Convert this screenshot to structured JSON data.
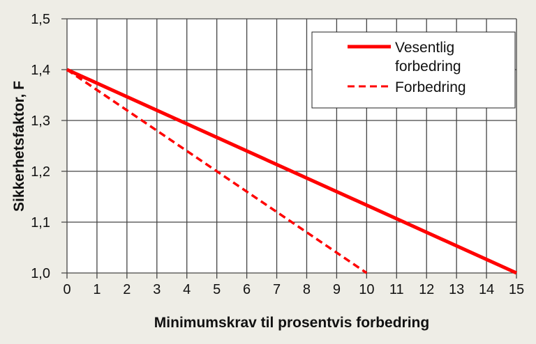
{
  "chart_data": {
    "type": "line",
    "title": "",
    "xlabel": "Minimumskrav til prosentvis forbedring",
    "ylabel": "Sikkerhetsfaktor, F",
    "xlim": [
      0,
      15
    ],
    "ylim": [
      1.0,
      1.5
    ],
    "x_ticks": [
      "0",
      "1",
      "2",
      "3",
      "4",
      "5",
      "6",
      "7",
      "8",
      "9",
      "10",
      "11",
      "12",
      "13",
      "14",
      "15"
    ],
    "y_ticks": [
      "1,0",
      "1,1",
      "1,2",
      "1,3",
      "1,4",
      "1,5"
    ],
    "grid": true,
    "legend_position": "top-right",
    "series": [
      {
        "name": "Vesentlig forbedring",
        "style": "solid",
        "color": "#ff0000",
        "x": [
          0,
          15
        ],
        "y": [
          1.4,
          1.0
        ]
      },
      {
        "name": "Forbedring",
        "style": "dashed",
        "color": "#ff0000",
        "x": [
          0,
          10
        ],
        "y": [
          1.4,
          1.0
        ]
      }
    ],
    "legend_lines": [
      [
        "Vesentlig",
        "forbedring"
      ],
      [
        "Forbedring"
      ]
    ]
  }
}
